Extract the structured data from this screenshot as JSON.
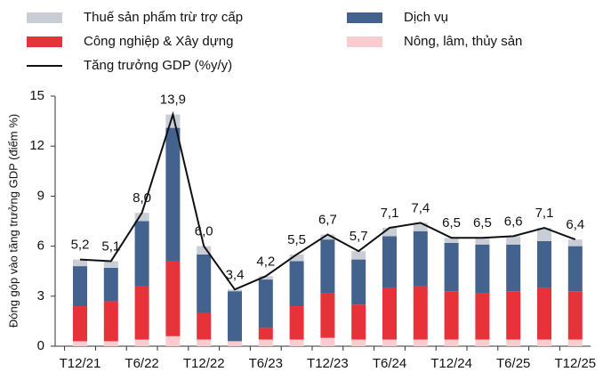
{
  "chart_data": {
    "type": "stacked-bar-line",
    "y_label": "Đóng góp vào tăng trưởng GDP (điểm %)",
    "categories": [
      "T12/21",
      null,
      "T6/22",
      null,
      "T12/22",
      null,
      "T6/23",
      null,
      "T12/23",
      null,
      "T6/24",
      null,
      "T12/24",
      null,
      "T6/25",
      null,
      "T12/25"
    ],
    "series": [
      {
        "name": "Thuế sản phẩm trừ trợ cấp",
        "color": "#c9ced6",
        "values": [
          0.4,
          0.4,
          0.5,
          0.8,
          0.5,
          0.1,
          0.2,
          0.4,
          0.3,
          0.5,
          0.5,
          0.5,
          0.3,
          0.4,
          0.5,
          0.8,
          0.4
        ]
      },
      {
        "name": "Dịch vụ",
        "color": "#44628e",
        "values": [
          2.4,
          2.0,
          3.9,
          8.0,
          3.5,
          3.0,
          2.9,
          2.7,
          3.2,
          2.7,
          3.1,
          3.3,
          2.9,
          2.9,
          2.8,
          2.8,
          2.7
        ]
      },
      {
        "name": "Công nghiệp & Xây dựng",
        "color": "#e8323a",
        "values": [
          2.1,
          2.4,
          3.2,
          4.5,
          1.6,
          0.0,
          0.7,
          2.0,
          2.7,
          2.1,
          3.1,
          3.2,
          2.9,
          2.8,
          2.9,
          3.1,
          2.9
        ]
      },
      {
        "name": "Nông, lâm, thủy sản",
        "color": "#f9cdd0",
        "values": [
          0.3,
          0.3,
          0.4,
          0.6,
          0.4,
          0.3,
          0.4,
          0.4,
          0.5,
          0.4,
          0.4,
          0.4,
          0.4,
          0.4,
          0.4,
          0.4,
          0.4
        ]
      }
    ],
    "line": {
      "name": "Tăng trưởng GDP (%y/y)",
      "color": "#111111",
      "values": [
        5.2,
        5.1,
        8.0,
        13.9,
        6.0,
        3.4,
        4.2,
        5.5,
        6.7,
        5.7,
        7.1,
        7.4,
        6.5,
        6.5,
        6.6,
        7.1,
        6.4
      ],
      "value_labels": [
        "5,2",
        "5,1",
        "8,0",
        "13,9",
        "6,0",
        "3,4",
        "4,2",
        "5,5",
        "6,7",
        "5,7",
        "7,1",
        "7,4",
        "6,5",
        "6,5",
        "6,6",
        "7,1",
        "6,4"
      ]
    },
    "ylim": [
      0,
      15
    ],
    "yticks": [
      0,
      3,
      6,
      9,
      12,
      15
    ]
  }
}
